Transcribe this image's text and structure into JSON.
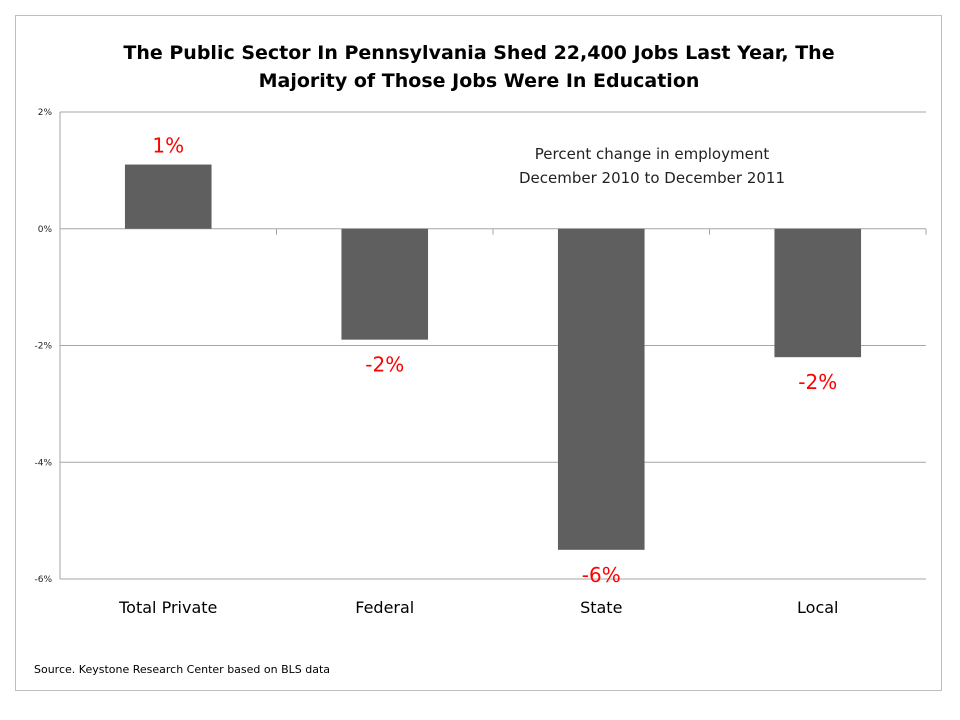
{
  "chart_data": {
    "type": "bar",
    "title_lines": [
      "The Public Sector In Pennsylvania Shed 22,400 Jobs Last Year, The",
      "Majority of Those Jobs Were In Education"
    ],
    "subtitle_lines": [
      "Percent change in employment",
      "December 2010 to December 2011"
    ],
    "categories": [
      "Total Private",
      "Federal",
      "State",
      "Local"
    ],
    "values": [
      1.1,
      -1.9,
      -5.5,
      -2.2
    ],
    "data_labels": [
      "1%",
      "-2%",
      "-6%",
      "-2%"
    ],
    "yticks": [
      2,
      0,
      -2,
      -4,
      -6
    ],
    "ytick_labels": [
      "2%",
      "0%",
      "-2%",
      "-4%",
      "-6%"
    ],
    "ylim": [
      -6,
      2
    ],
    "grid": true,
    "legend": "none",
    "source": "Source. Keystone Research Center based on BLS data",
    "colors": {
      "bar": "#5f5f5f",
      "label": "#ff0000",
      "grid": "#a6a6a6"
    }
  }
}
